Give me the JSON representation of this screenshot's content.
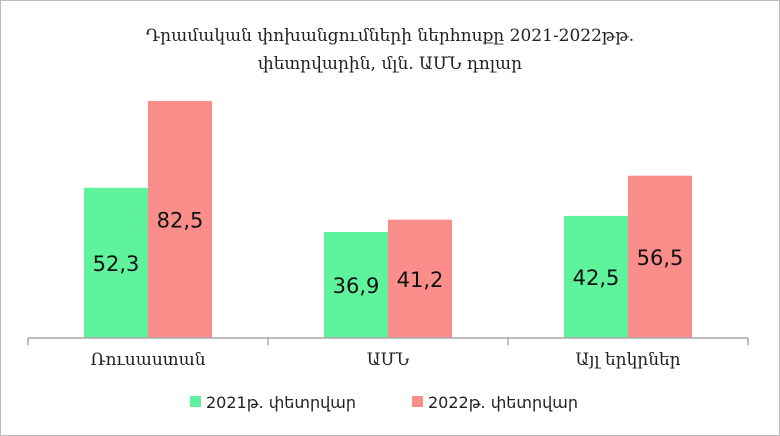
{
  "chart_data": {
    "type": "bar",
    "title_lines": [
      "Դրամական փոխանցումների ներհոսքը 2021-2022թթ.",
      "փետրվարին, մլն. ԱՄՆ դոլար"
    ],
    "categories": [
      "Ռուսաստան",
      "ԱՄՆ",
      "Այլ երկրներ"
    ],
    "series": [
      {
        "name": "2021թ. փետրվար",
        "color": "#5ef39c",
        "values": [
          52.3,
          36.9,
          42.5
        ],
        "labels": [
          "52,3",
          "36,9",
          "42,5"
        ]
      },
      {
        "name": "2022թ. փետրվար",
        "color": "#fb8e8a",
        "values": [
          82.5,
          41.2,
          56.5
        ],
        "labels": [
          "82,5",
          "41,2",
          "56,5"
        ]
      }
    ],
    "ylim": [
      0,
      85
    ],
    "grid": false,
    "legend": "bottom"
  }
}
